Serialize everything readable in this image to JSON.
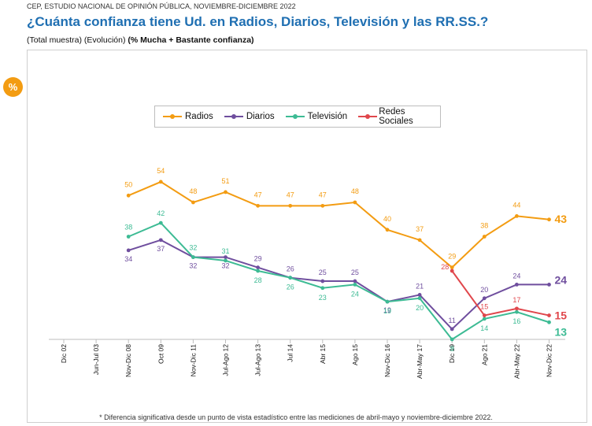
{
  "header": {
    "source": "CEP, ESTUDIO NACIONAL DE OPINIÓN PÚBLICA, NOVIEMBRE-DICIEMBRE 2022",
    "title": "¿Cuánta confianza tiene Ud. en Radios, Diarios, Televisión y las RR.SS.?",
    "subtitle_plain": "(Total muestra) (Evolución) ",
    "subtitle_bold": "(% Mucha + Bastante confianza)"
  },
  "badge": "%",
  "footnote": "* Diferencia significativa desde un punto de vista estadístico entre las mediciones de abril-mayo y noviembre-diciembre 2022.",
  "chart_data": {
    "type": "line",
    "categories": [
      "Dic 02",
      "Jun-Jul 03",
      "Nov-Dic 08",
      "Oct 09",
      "Nov-Dic 11",
      "Jul-Ago 12",
      "Jul-Ago 13",
      "Jul 14",
      "Abr 15",
      "Ago 15",
      "Nov-Dic 16",
      "Abr-May 17",
      "Dic 19",
      "Ago 21",
      "Abr-May 22",
      "Nov-Dic 22"
    ],
    "series": [
      {
        "name": "Radios",
        "color": "#f39c12",
        "values": [
          null,
          null,
          50,
          54,
          48,
          51,
          47,
          47,
          47,
          48,
          40,
          37,
          29,
          38,
          44,
          43
        ]
      },
      {
        "name": "Diarios",
        "color": "#6f4e9e",
        "values": [
          null,
          null,
          34,
          37,
          32,
          32,
          29,
          26,
          25,
          25,
          19,
          21,
          11,
          20,
          24,
          24
        ]
      },
      {
        "name": "Televisión",
        "color": "#3dbb94",
        "values": [
          null,
          null,
          38,
          42,
          32,
          31,
          28,
          26,
          23,
          24,
          19,
          20,
          8,
          14,
          16,
          13
        ]
      },
      {
        "name": "Redes Sociales",
        "color": "#e0474c",
        "values": [
          null,
          null,
          null,
          null,
          null,
          null,
          null,
          null,
          null,
          null,
          null,
          null,
          28,
          15,
          17,
          15
        ]
      }
    ],
    "ylim": [
      0,
      60
    ],
    "legend_position": "top",
    "grid": false
  }
}
